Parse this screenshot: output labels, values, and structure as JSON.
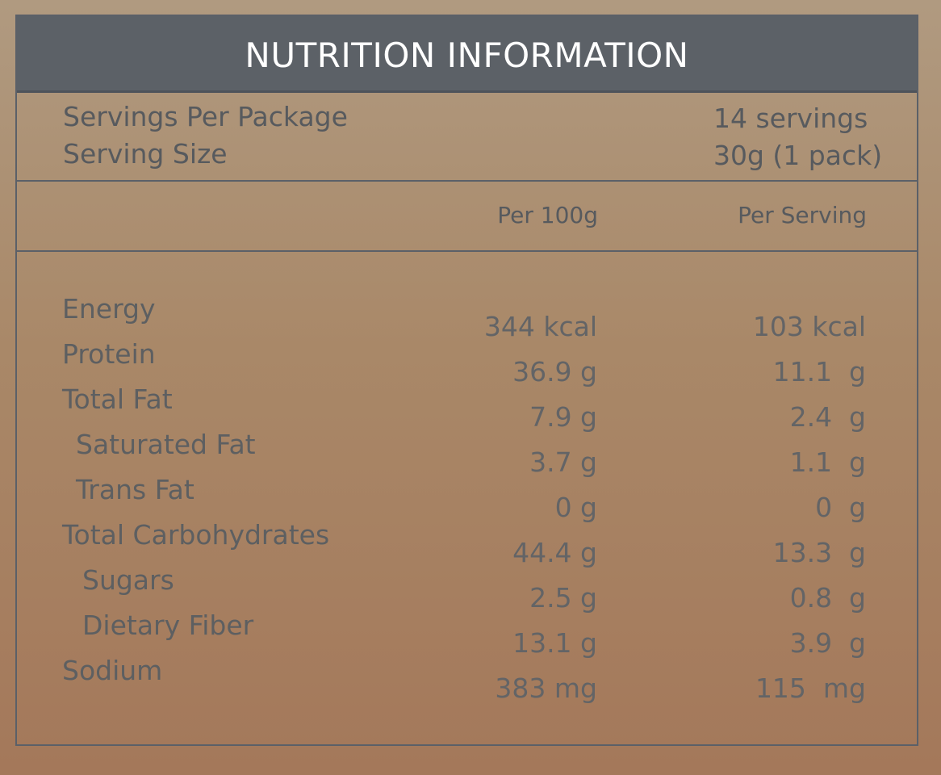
{
  "title": "NUTRITION INFORMATION",
  "servings": [
    {
      "label": "Servings Per Package",
      "value": "14 servings"
    },
    {
      "label": "Serving Size",
      "value": "30g (1 pack)"
    }
  ],
  "columns": {
    "per_100g": "Per 100g",
    "per_serving": "Per Serving"
  },
  "nutrients": [
    {
      "label": "Energy",
      "per_100g": "344 kcal",
      "per_serving": "103 kcal"
    },
    {
      "label": "Protein",
      "per_100g": "36.9 g",
      "per_serving": "11.1  g"
    },
    {
      "label": "Total Fat",
      "per_100g": "7.9 g",
      "per_serving": "2.4  g"
    },
    {
      "label": "Saturated Fat",
      "per_100g": "3.7 g",
      "per_serving": "1.1  g"
    },
    {
      "label": "Trans Fat",
      "per_100g": "0 g",
      "per_serving": "0  g"
    },
    {
      "label": "Total Carbohydrates",
      "per_100g": "44.4 g",
      "per_serving": "13.3  g"
    },
    {
      "label": "Sugars",
      "per_100g": "2.5 g",
      "per_serving": "0.8  g"
    },
    {
      "label": "Dietary Fiber",
      "per_100g": "13.1 g",
      "per_serving": "3.9  g"
    },
    {
      "label": "Sodium",
      "per_100g": "383 mg",
      "per_serving": "115  mg"
    }
  ]
}
